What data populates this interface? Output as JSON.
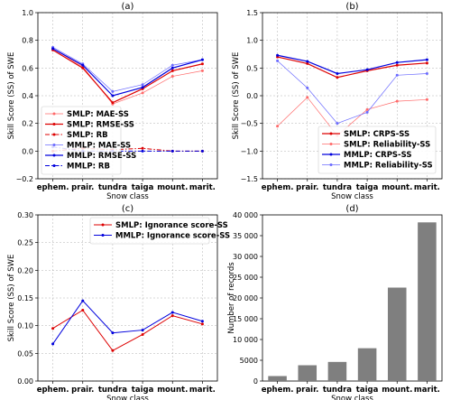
{
  "chart_data": [
    {
      "type": "line",
      "title": "(a)",
      "xlabel": "Snow class",
      "ylabel": "Skill Score (SS) of SWE",
      "categories": [
        "ephem.",
        "prair.",
        "tundra",
        "taiga",
        "mount.",
        "marit."
      ],
      "ylim": [
        -0.2,
        1.0
      ],
      "yticks": [
        "−0.2",
        "0.0",
        "0.2",
        "0.4",
        "0.6",
        "0.8",
        "1.0"
      ],
      "yticks_values": [
        -0.2,
        0.0,
        0.2,
        0.4,
        0.6,
        0.8,
        1.0
      ],
      "grid": true,
      "legend": "lower-left",
      "series": [
        {
          "name": "SMLP: MAE-SS",
          "color": "#ff6a6a",
          "style": "solid",
          "width": 0.7,
          "values": [
            0.74,
            0.61,
            0.34,
            0.42,
            0.54,
            0.58
          ]
        },
        {
          "name": "SMLP: RMSE-SS",
          "color": "#dd0000",
          "style": "solid",
          "width": 1.2,
          "values": [
            0.73,
            0.6,
            0.35,
            0.45,
            0.58,
            0.63
          ]
        },
        {
          "name": "SMLP: RB",
          "color": "#dd0000",
          "style": "dashdot",
          "width": 1.0,
          "values": [
            0.0,
            0.02,
            0.01,
            0.02,
            0.0,
            0.0
          ]
        },
        {
          "name": "MMLP: MAE-SS",
          "color": "#6b6bff",
          "style": "solid",
          "width": 0.7,
          "values": [
            0.75,
            0.63,
            0.43,
            0.48,
            0.62,
            0.66
          ]
        },
        {
          "name": "MMLP: RMSE-SS",
          "color": "#0000dd",
          "style": "solid",
          "width": 1.2,
          "values": [
            0.74,
            0.62,
            0.4,
            0.46,
            0.6,
            0.66
          ]
        },
        {
          "name": "MMLP: RB",
          "color": "#0000dd",
          "style": "dashdot",
          "width": 1.0,
          "values": [
            0.03,
            0.0,
            0.0,
            0.0,
            0.0,
            0.0
          ]
        }
      ]
    },
    {
      "type": "line",
      "title": "(b)",
      "xlabel": "Snow class",
      "ylabel": "Skill Score (SS) of SWE",
      "categories": [
        "ephem.",
        "prair.",
        "tundra",
        "taiga",
        "mount.",
        "marit."
      ],
      "ylim": [
        -1.5,
        1.5
      ],
      "yticks": [
        "−1.5",
        "−1.0",
        "−0.5",
        "0.0",
        "0.5",
        "1.0",
        "1.5"
      ],
      "yticks_values": [
        -1.5,
        -1.0,
        -0.5,
        0.0,
        0.5,
        1.0,
        1.5
      ],
      "grid": true,
      "legend": "lower-right",
      "series": [
        {
          "name": "SMLP: CRPS-SS",
          "color": "#dd0000",
          "style": "solid",
          "width": 1.2,
          "values": [
            0.7,
            0.58,
            0.33,
            0.45,
            0.55,
            0.59
          ]
        },
        {
          "name": "SMLP: Reliability-SS",
          "color": "#ff6a6a",
          "style": "solid",
          "width": 0.7,
          "values": [
            -0.55,
            -0.03,
            -0.72,
            -0.25,
            -0.1,
            -0.07
          ]
        },
        {
          "name": "MMLP: CRPS-SS",
          "color": "#0000dd",
          "style": "solid",
          "width": 1.2,
          "values": [
            0.73,
            0.62,
            0.4,
            0.47,
            0.6,
            0.65
          ]
        },
        {
          "name": "MMLP: Reliability-SS",
          "color": "#6b6bff",
          "style": "solid",
          "width": 0.7,
          "values": [
            0.63,
            0.14,
            -0.5,
            -0.3,
            0.37,
            0.4
          ]
        }
      ]
    },
    {
      "type": "line",
      "title": "(c)",
      "xlabel": "Snow class",
      "ylabel": "Skill Score (SS) of SWE",
      "categories": [
        "ephem.",
        "prair.",
        "tundra",
        "taiga",
        "mount.",
        "marit."
      ],
      "ylim": [
        0.0,
        0.3
      ],
      "yticks": [
        "0.00",
        "0.05",
        "0.10",
        "0.15",
        "0.20",
        "0.25",
        "0.30"
      ],
      "yticks_values": [
        0.0,
        0.05,
        0.1,
        0.15,
        0.2,
        0.25,
        0.3
      ],
      "grid": true,
      "legend": "top-right",
      "series": [
        {
          "name": "SMLP: Ignorance score-SS",
          "color": "#dd0000",
          "style": "solid",
          "width": 1.0,
          "values": [
            0.095,
            0.128,
            0.055,
            0.084,
            0.118,
            0.103
          ]
        },
        {
          "name": "MMLP: Ignorance score-SS",
          "color": "#0000dd",
          "style": "solid",
          "width": 1.0,
          "values": [
            0.067,
            0.145,
            0.087,
            0.092,
            0.124,
            0.108
          ]
        }
      ]
    },
    {
      "type": "bar",
      "title": "(d)",
      "xlabel": "Snow class",
      "ylabel": "Number of records",
      "categories": [
        "ephem.",
        "prair.",
        "tundra",
        "taiga",
        "mount.",
        "marit."
      ],
      "ylim": [
        0,
        40000
      ],
      "yticks": [
        "0",
        "5000",
        "10 000",
        "15 000",
        "20 000",
        "25 000",
        "30 000",
        "35 000",
        "40 000"
      ],
      "yticks_values": [
        0,
        5000,
        10000,
        15000,
        20000,
        25000,
        30000,
        35000,
        40000
      ],
      "grid": false,
      "bar_color": "#7f7f7f",
      "values": [
        1200,
        3800,
        4600,
        7900,
        22500,
        38200
      ]
    }
  ]
}
